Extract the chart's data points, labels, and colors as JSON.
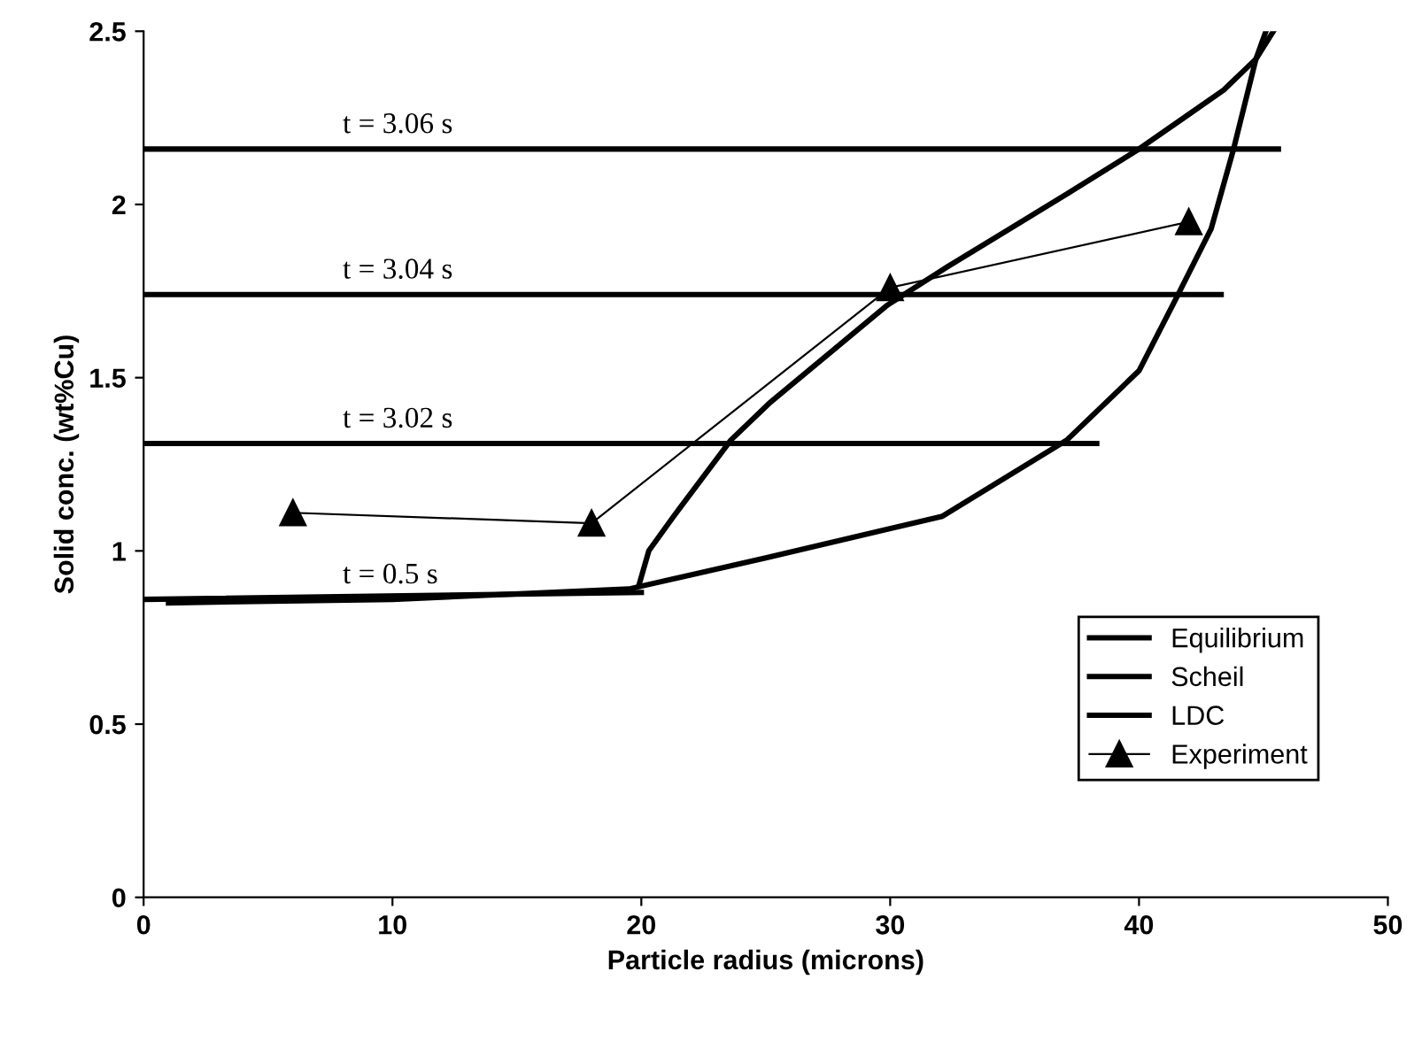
{
  "chart_data": {
    "type": "line",
    "xlabel": "Particle radius (microns)",
    "ylabel": "Solid conc. (wt%Cu)",
    "xlim": [
      0,
      50
    ],
    "ylim": [
      0,
      2.5
    ],
    "xticks": [
      0,
      10,
      20,
      30,
      40,
      50
    ],
    "yticks": [
      0,
      0.5,
      1,
      1.5,
      2,
      2.5
    ],
    "grid": false,
    "legend": "bottom right",
    "series": [
      {
        "name": "Equilibrium",
        "color": "#000000",
        "marker": "none",
        "x": [
          1,
          10,
          19.5,
          25,
          32.1,
          37.1,
          40,
          41.5,
          42.9,
          43.8,
          44.7,
          45.1
        ],
        "values": [
          0.85,
          0.86,
          0.89,
          0.98,
          1.1,
          1.32,
          1.52,
          1.73,
          1.93,
          2.16,
          2.42,
          2.5
        ]
      },
      {
        "name": "Scheil",
        "color": "#000000",
        "marker": "none",
        "x": [
          19.9,
          20.3,
          21.3,
          23.6,
          25.2,
          29.9,
          32.3,
          37.1,
          40,
          41.8,
          43.4,
          44.7,
          45.4
        ],
        "values": [
          0.9,
          1.0,
          1.1,
          1.32,
          1.43,
          1.71,
          1.82,
          2.03,
          2.16,
          2.25,
          2.33,
          2.42,
          2.5
        ]
      },
      {
        "name": "LDC",
        "color": "#000000",
        "marker": "none",
        "x": [
          0,
          20
        ],
        "values": [
          0.86,
          0.88
        ]
      },
      {
        "color": "#000000",
        "marker": "none",
        "x": [
          0,
          38.3
        ],
        "values": [
          1.31,
          1.31
        ]
      },
      {
        "color": "#000000",
        "marker": "none",
        "x": [
          0,
          43.3
        ],
        "values": [
          1.74,
          1.74
        ]
      },
      {
        "color": "#000000",
        "marker": "none",
        "x": [
          0,
          45.6
        ],
        "values": [
          2.16,
          2.16
        ]
      },
      {
        "name": "Experiment",
        "color": "#000000",
        "marker": "triangle",
        "x": [
          6,
          18,
          30,
          42
        ],
        "values": [
          1.11,
          1.08,
          1.76,
          1.95
        ]
      }
    ],
    "annotations": [
      {
        "text": "t = 3.06 s",
        "y": 2.16
      },
      {
        "text": "t = 3.04 s",
        "y": 1.74
      },
      {
        "text": "t = 3.02 s",
        "y": 1.31
      },
      {
        "text": "t = 0.5 s",
        "y": 0.86
      }
    ]
  }
}
